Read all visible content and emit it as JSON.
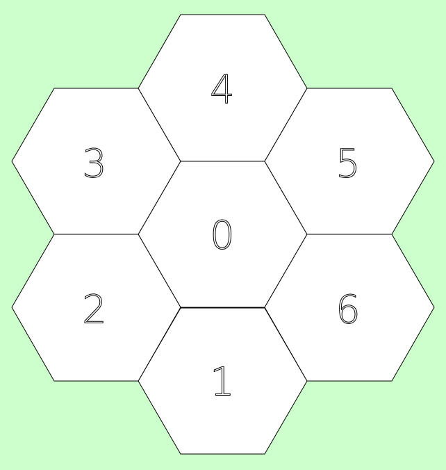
{
  "colors": {
    "background": "#ccffcc",
    "cell_fill": "#ffffff",
    "cell_stroke": "#000000"
  },
  "cells": [
    {
      "label": "0",
      "position": "center"
    },
    {
      "label": "1",
      "position": "bottom"
    },
    {
      "label": "2",
      "position": "lower-left"
    },
    {
      "label": "3",
      "position": "upper-left"
    },
    {
      "label": "4",
      "position": "top"
    },
    {
      "label": "5",
      "position": "upper-right"
    },
    {
      "label": "6",
      "position": "lower-right"
    }
  ]
}
